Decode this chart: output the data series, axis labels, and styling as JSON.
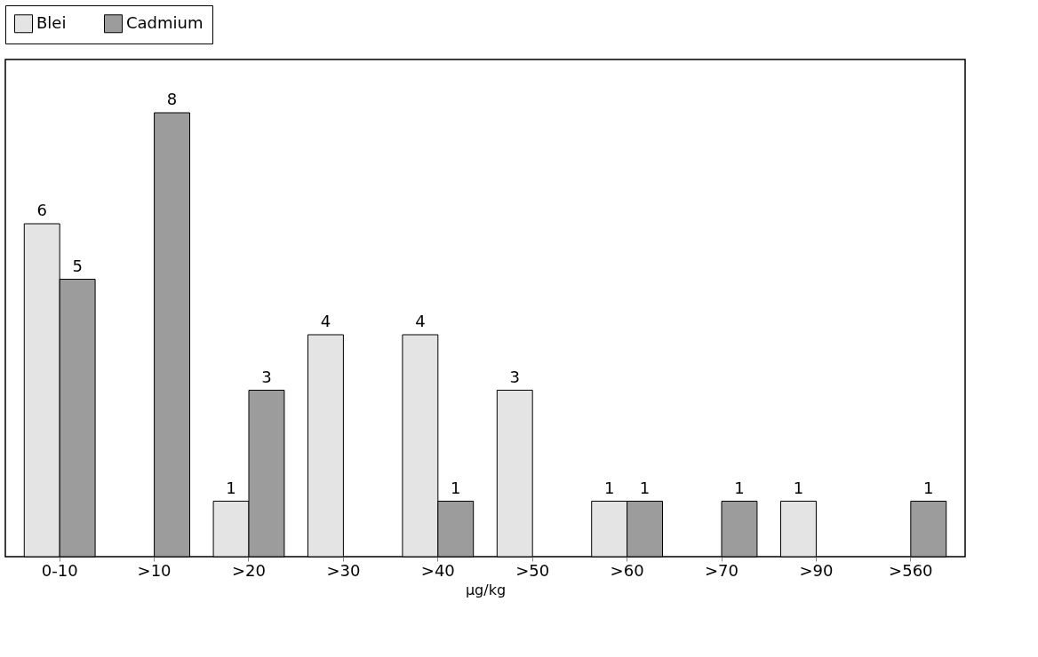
{
  "chart_data": {
    "type": "bar",
    "xlabel": "µg/kg",
    "categories": [
      "0-10",
      ">10",
      ">20",
      ">30",
      ">40",
      ">50",
      ">60",
      ">70",
      ">90",
      ">560"
    ],
    "series": [
      {
        "name": "Blei",
        "color": "#e4e4e4",
        "values": [
          6,
          null,
          1,
          4,
          4,
          3,
          1,
          null,
          1,
          null
        ]
      },
      {
        "name": "Cadmium",
        "color": "#9c9c9c",
        "values": [
          5,
          8,
          3,
          null,
          1,
          null,
          1,
          1,
          null,
          1
        ]
      }
    ],
    "data_labels": true,
    "legend": "top",
    "grid": false
  }
}
